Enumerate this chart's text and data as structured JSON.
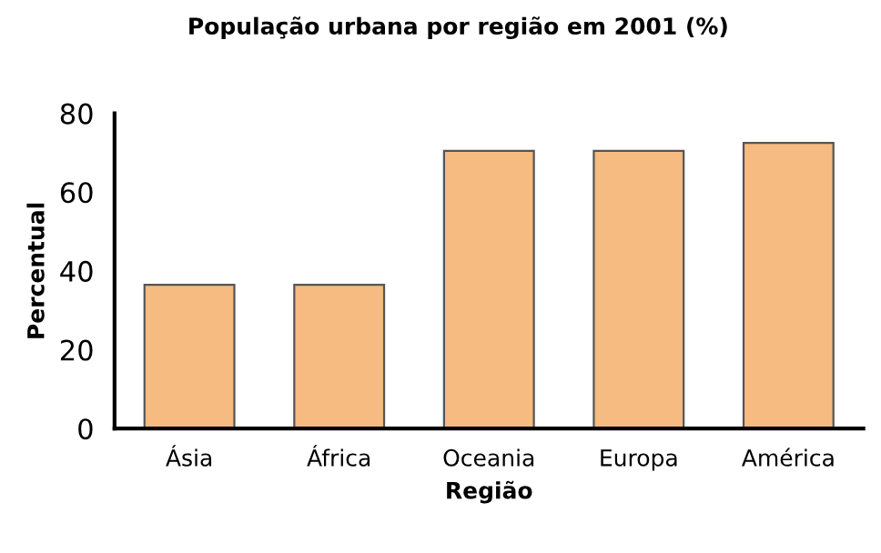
{
  "chart_data": {
    "type": "bar",
    "title": "População urbana por região em 2001 (%)",
    "xlabel": "Região",
    "ylabel": "Percentual",
    "categories": [
      "Ásia",
      "África",
      "Oceania",
      "Europa",
      "América"
    ],
    "values": [
      36.5,
      36.5,
      70.5,
      70.5,
      72.5
    ],
    "color": "#f5bb80",
    "ylim": [
      0,
      80
    ],
    "yticks": [
      0,
      20,
      40,
      60,
      80
    ],
    "grid": false
  }
}
